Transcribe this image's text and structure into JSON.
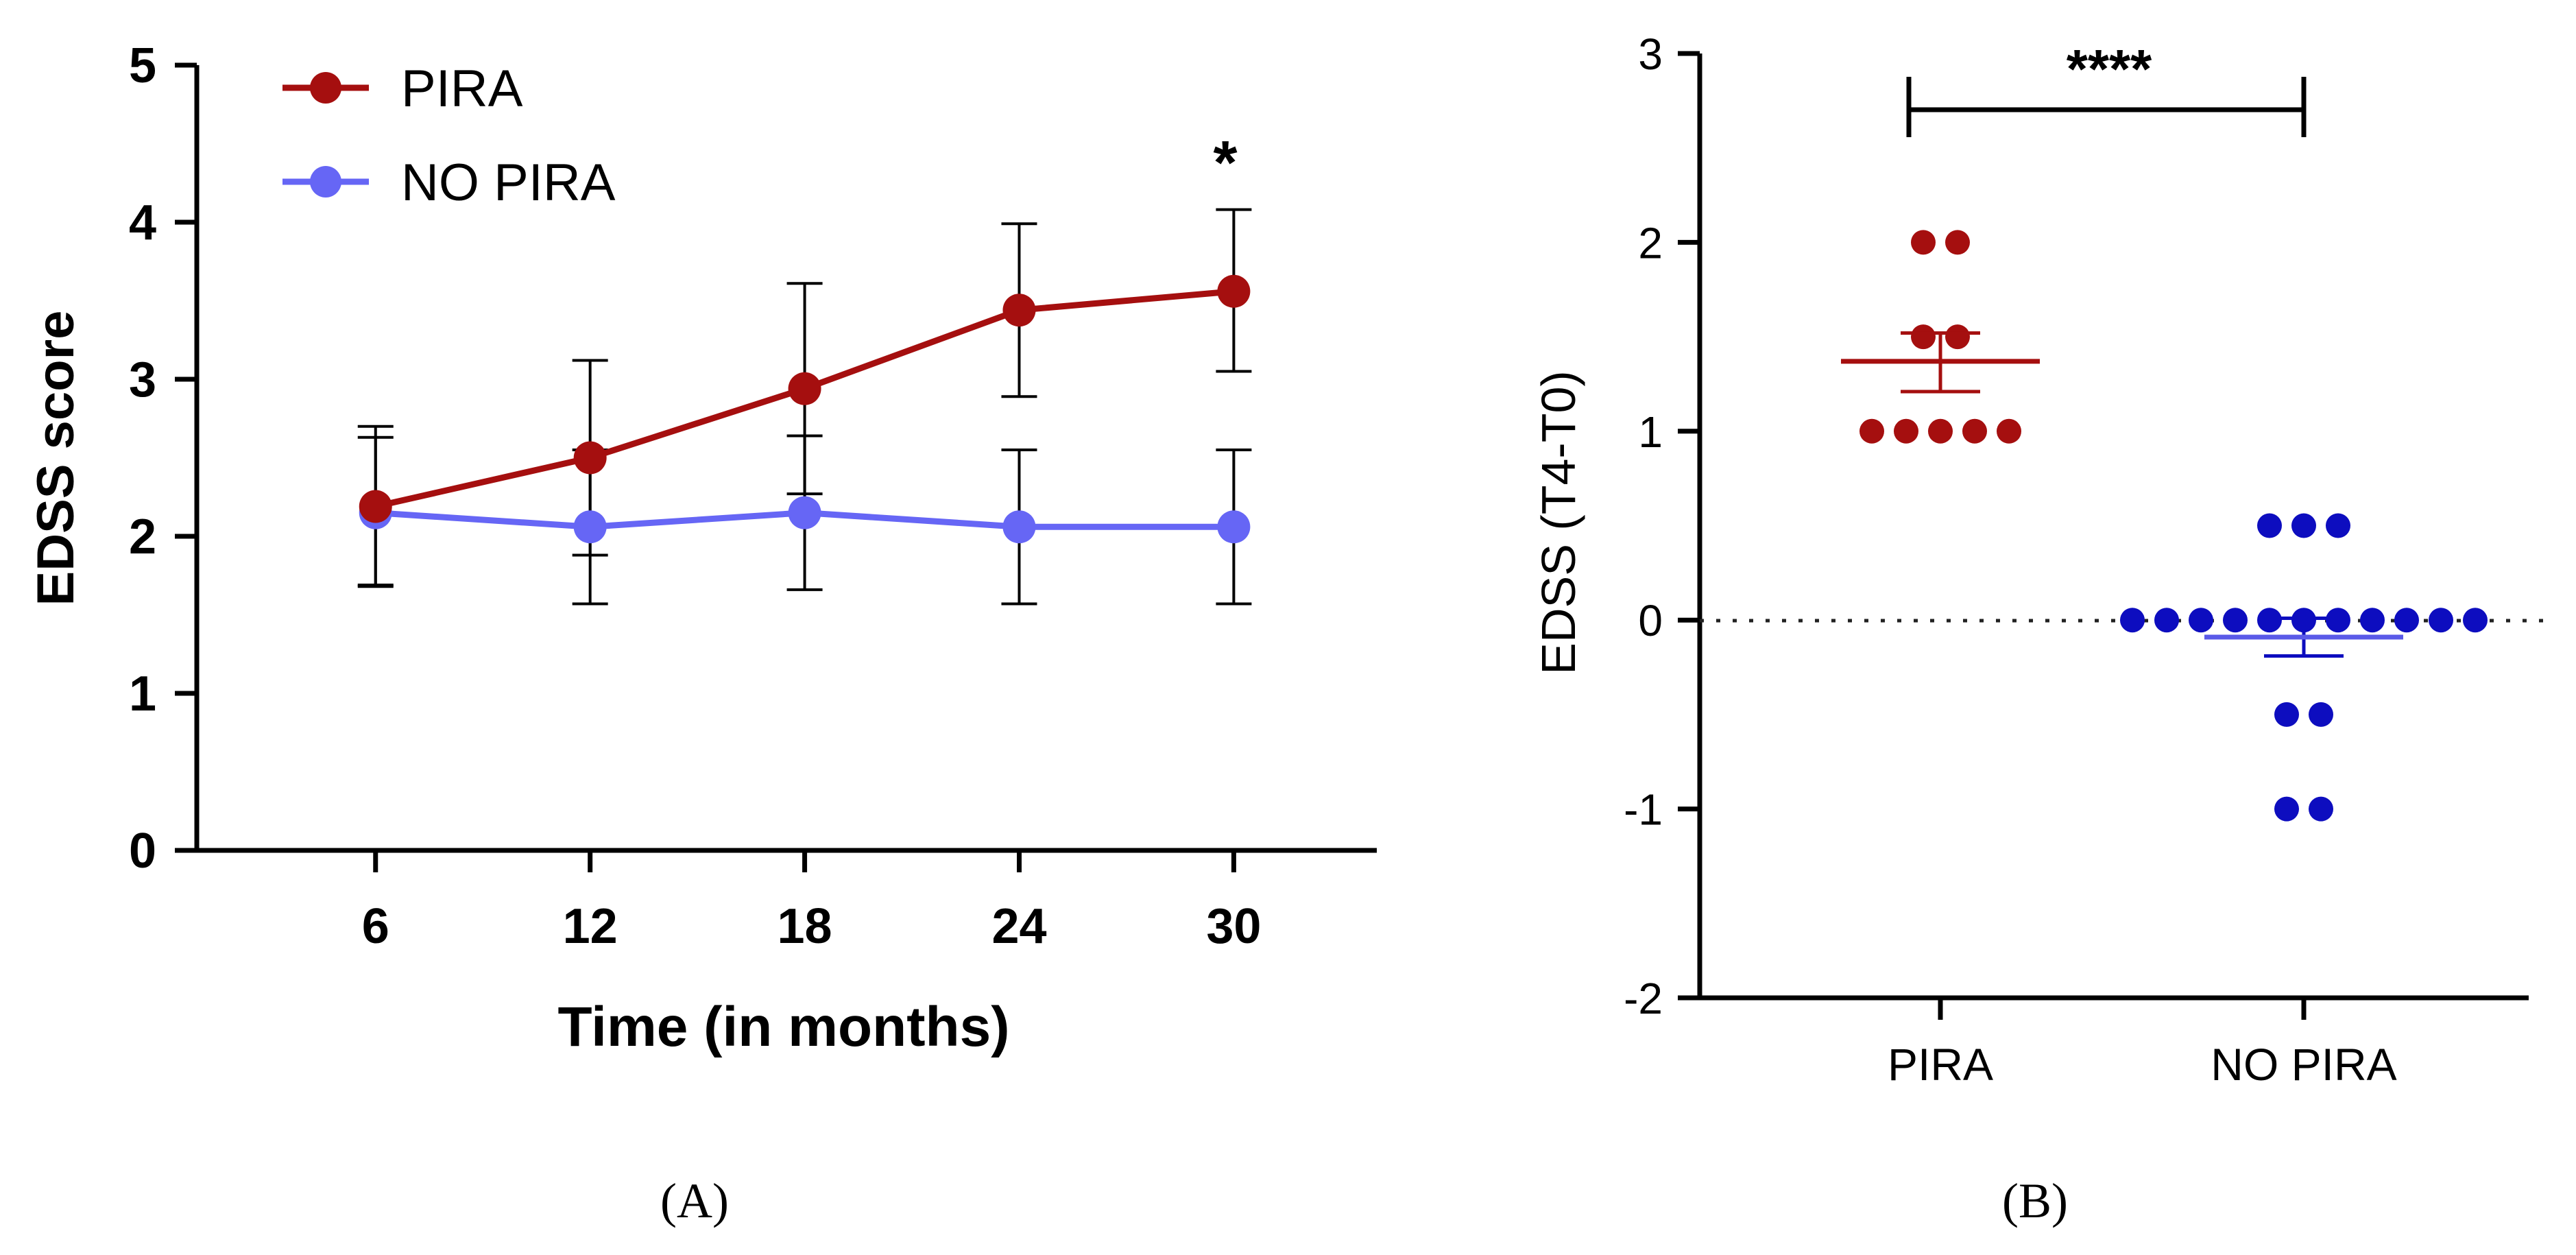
{
  "chart_data": [
    {
      "type": "line",
      "panel_label": "(A)",
      "title": "",
      "xlabel": "Time (in months)",
      "ylabel": "EDSS score",
      "x": [
        6,
        12,
        18,
        24,
        30
      ],
      "xticks": [
        "6",
        "12",
        "18",
        "24",
        "30"
      ],
      "yticks": [
        "0",
        "1",
        "2",
        "3",
        "4",
        "5"
      ],
      "xlim": [
        1,
        34
      ],
      "ylim": [
        0,
        5
      ],
      "legend_position": "top-left",
      "series": [
        {
          "name": "PIRA",
          "color": "#A50F0F",
          "values": [
            2.19,
            2.5,
            2.94,
            3.44,
            3.56
          ],
          "err_low": [
            1.69,
            1.88,
            2.27,
            2.89,
            3.05
          ],
          "err_high": [
            2.63,
            3.12,
            3.61,
            3.99,
            4.08
          ]
        },
        {
          "name": "NO PIRA",
          "color": "#6666F5",
          "values": [
            2.15,
            2.06,
            2.15,
            2.06,
            2.06
          ],
          "err_low": [
            1.68,
            1.57,
            1.66,
            1.57,
            1.57
          ],
          "err_high": [
            2.7,
            2.55,
            2.64,
            2.55,
            2.55
          ]
        }
      ],
      "annotations": [
        {
          "text": "*",
          "x": 30,
          "y": 4.3
        }
      ]
    },
    {
      "type": "scatter",
      "panel_label": "(B)",
      "title": "",
      "xlabel": "",
      "ylabel": "EDSS (T4-T0)",
      "categories": [
        "PIRA",
        "NO PIRA"
      ],
      "yticks": [
        "3",
        "2",
        "1",
        "0",
        "-1",
        "-2"
      ],
      "ylim": [
        -2,
        3
      ],
      "reference_line": 0,
      "significance": "****",
      "groups": [
        {
          "name": "PIRA",
          "color": "#A50F0F",
          "values": [
            2,
            2,
            1.5,
            1.5,
            1,
            1,
            1,
            1,
            1
          ],
          "mean": 1.37,
          "sem_low": 1.21,
          "sem_high": 1.52
        },
        {
          "name": "NO PIRA",
          "color": "#0D0DBF",
          "values": [
            0.5,
            0.5,
            0.5,
            0,
            0,
            0,
            0,
            0,
            0,
            0,
            0,
            0,
            0,
            0,
            -0.5,
            -0.5,
            -1,
            -1
          ],
          "mean": -0.09,
          "sem_low": -0.19,
          "sem_high": 0.01
        }
      ]
    }
  ]
}
